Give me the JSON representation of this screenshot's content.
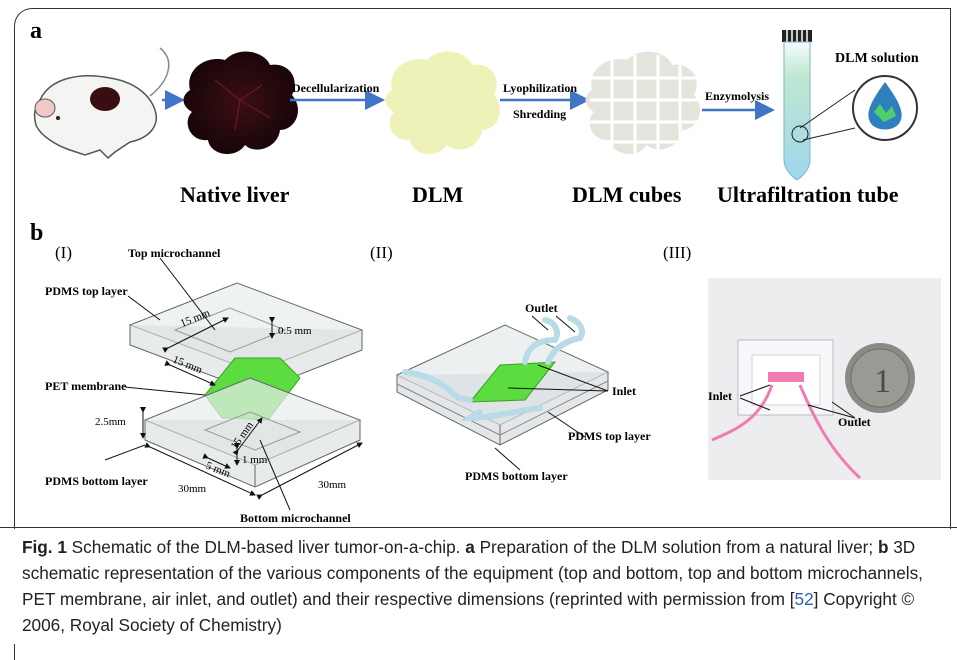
{
  "panel_a": {
    "letter": "a",
    "steps": [
      "Decellularization",
      "Lyophilization",
      "Shredding",
      "Enzymolysis"
    ],
    "labels": [
      "Native liver",
      "DLM",
      "DLM cubes",
      "Ultrafiltration tube"
    ],
    "solution_label": "DLM solution"
  },
  "panel_b": {
    "letter": "b",
    "sub_i": "(I)",
    "sub_ii": "(II)",
    "sub_iii": "(III)",
    "i_labels": {
      "top_microchannel": "Top microchannel",
      "pdms_top": "PDMS top layer",
      "pet": "PET membrane",
      "pdms_bottom": "PDMS bottom layer",
      "bottom_microchannel": "Bottom microchannel",
      "dim_15a": "15 mm",
      "dim_15b": "15 mm",
      "dim_15c": "15 mm",
      "dim_05": "0.5 mm",
      "dim_25": "2.5mm",
      "dim_5": "5 mm",
      "dim_1": "1 mm",
      "dim_30a": "30mm",
      "dim_30b": "30mm"
    },
    "ii_labels": {
      "outlet": "Outlet",
      "inlet": "Inlet",
      "pdms_top": "PDMS top layer",
      "pdms_bottom": "PDMS bottom layer"
    },
    "iii_labels": {
      "inlet": "Inlet",
      "outlet": "Outlet"
    }
  },
  "caption": {
    "fig": "Fig. 1",
    "t1": "  Schematic of the DLM-based liver tumor-on-a-chip. ",
    "a": "a",
    "t2": " Preparation of the DLM solution from a natural liver; ",
    "b": "b",
    "t3": " 3D schematic representation of the various components of the equipment (top and bottom, top and bottom microchannels, PET membrane, air inlet, and outlet) and their respective dimensions (reprinted with permission from [",
    "ref": "52",
    "t4": "] Copyright © 2006, Royal Society of Chemistry)"
  },
  "colors": {
    "liver_dark": "#2a0a0e",
    "dlm": "#eef2b8",
    "arrow": "#3f74c6",
    "green": "#5ddc3f",
    "tube": "#c9e7f3",
    "coin": "#8a8a86"
  }
}
